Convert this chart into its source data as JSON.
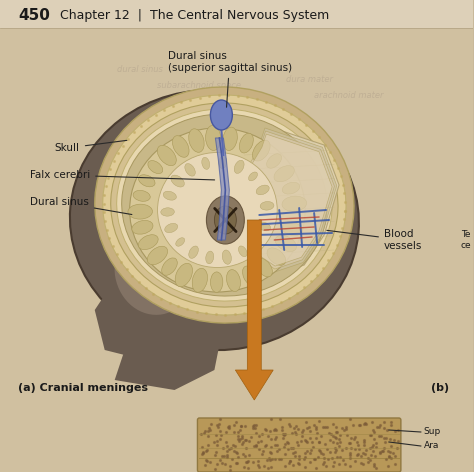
{
  "bg_color": "#c8b89a",
  "header_bg": "#ddd0b8",
  "page_bg": "#d0c0a0",
  "title_number": "450",
  "title_text": "Chapter 12  |  The Central Nervous System",
  "head_dark": "#6a5c50",
  "head_mid": "#8a7a6a",
  "head_light": "#a09080",
  "skull_band": "#c8b080",
  "skull_inner_band": "#e0cc98",
  "dura_color": "#d4c090",
  "meninges_color": "#e8d8b0",
  "brain_outer": "#c8b888",
  "brain_mid": "#d8c898",
  "brain_inner_light": "#e8d8b8",
  "brainstem_color": "#8a7860",
  "falx_blue": "#5060a0",
  "sinus_blue": "#6878b8",
  "vessel_blue": "#3858a8",
  "vessel_red": "#b84030",
  "tentorium_color": "#c8b898",
  "arrow_color": "#c87820",
  "text_color": "#1a1a1a",
  "label_line_color": "#2a2a2a",
  "bottom_tissue_color": "#b89858",
  "bottom_dot_color": "#7a5a38",
  "face_skin": "#9a8878",
  "labels": {
    "dural_sinus": "Dural sinus\n(superior sagittal sinus)",
    "skull": "Skull",
    "falx_cerebri": "Falx cerebri",
    "dural_sinus2": "Dural sinus",
    "blood_vessels": "Blood\nvessels",
    "cranial_meninges": "(a) Cranial meninges",
    "b_label": "(b)",
    "te_label": "Te",
    "ce_label": "ce",
    "sup_label": "Sup",
    "ara_label": "Ara"
  }
}
